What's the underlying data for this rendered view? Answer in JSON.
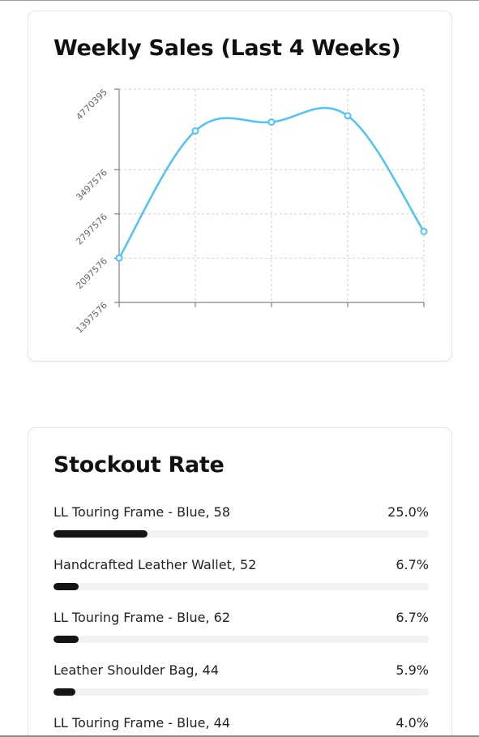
{
  "weekly_sales": {
    "title": "Weekly Sales (Last 4 Weeks)"
  },
  "chart_data": {
    "type": "line",
    "title": "Weekly Sales (Last 4 Weeks)",
    "xlabel": "",
    "ylabel": "",
    "y_ticks": [
      "1397576",
      "2097576",
      "2797576",
      "3497576",
      "4770395"
    ],
    "ylim": [
      1397576,
      4770395
    ],
    "grid": true,
    "series": [
      {
        "color": "#4fc3f7",
        "values": [
          2100000,
          4110000,
          4250000,
          4350000,
          2520000
        ]
      }
    ]
  },
  "stockout": {
    "title": "Stockout Rate",
    "items": [
      {
        "label": "LL Touring Frame - Blue, 58",
        "value_text": "25.0%",
        "rate": 25.0
      },
      {
        "label": "Handcrafted Leather Wallet, 52",
        "value_text": "6.7%",
        "rate": 6.7
      },
      {
        "label": "LL Touring Frame - Blue, 62",
        "value_text": "6.7%",
        "rate": 6.7
      },
      {
        "label": "Leather Shoulder Bag, 44",
        "value_text": "5.9%",
        "rate": 5.9
      },
      {
        "label": "LL Touring Frame - Blue, 44",
        "value_text": "4.0%",
        "rate": 4.0
      }
    ]
  }
}
